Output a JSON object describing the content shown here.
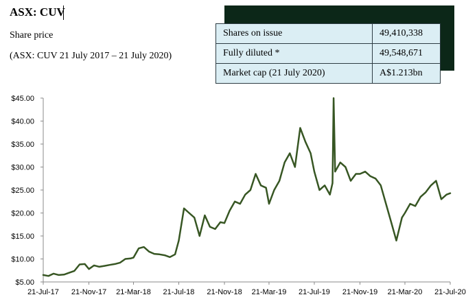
{
  "header": {
    "ticker": "ASX: CUV",
    "subtitle": "Share price",
    "range": "(ASX: CUV 21 July 2017 – 21 July 2020)"
  },
  "stats": [
    {
      "label": "Shares on issue",
      "value": "49,410,338"
    },
    {
      "label": "Fully diluted *",
      "value": "49,548,671"
    },
    {
      "label": "Market cap (21 July 2020)",
      "value": "A$1.213bn"
    }
  ],
  "colors": {
    "line": "#375623",
    "panel": "#0c2718",
    "table_bg": "#dbeef4"
  },
  "chart_data": {
    "type": "line",
    "xlabel": "",
    "ylabel": "",
    "ylim": [
      5,
      45
    ],
    "xlim": [
      "2017-07-21",
      "2020-07-21"
    ],
    "y_ticks": [
      5,
      10,
      15,
      20,
      25,
      30,
      35,
      40,
      45
    ],
    "y_tick_labels": [
      "$5.00",
      "$10.00",
      "$15.00",
      "$20.00",
      "$25.00",
      "$30.00",
      "$35.00",
      "$40.00",
      "$45.00"
    ],
    "x_ticks": [
      "2017-07-21",
      "2017-11-21",
      "2018-03-21",
      "2018-07-21",
      "2018-11-21",
      "2019-03-21",
      "2019-07-21",
      "2019-11-21",
      "2020-03-21",
      "2020-07-21"
    ],
    "x_tick_labels": [
      "21-Jul-17",
      "21-Nov-17",
      "21-Mar-18",
      "21-Jul-18",
      "21-Nov-18",
      "21-Mar-19",
      "21-Jul-19",
      "21-Nov-19",
      "21-Mar-20",
      "21-Jul-20"
    ],
    "grid": false,
    "series": [
      {
        "x": [
          "2017-07-21",
          "2017-08-04",
          "2017-08-18",
          "2017-09-01",
          "2017-09-15",
          "2017-09-29",
          "2017-10-13",
          "2017-10-27",
          "2017-11-10",
          "2017-11-21",
          "2017-12-05",
          "2017-12-19",
          "2018-01-02",
          "2018-01-16",
          "2018-01-30",
          "2018-02-13",
          "2018-02-27",
          "2018-03-13",
          "2018-03-21",
          "2018-04-04",
          "2018-04-18",
          "2018-05-02",
          "2018-05-16",
          "2018-05-30",
          "2018-06-13",
          "2018-06-27",
          "2018-07-11",
          "2018-07-21",
          "2018-08-04",
          "2018-08-18",
          "2018-09-01",
          "2018-09-15",
          "2018-09-29",
          "2018-10-13",
          "2018-10-27",
          "2018-11-10",
          "2018-11-21",
          "2018-12-05",
          "2018-12-19",
          "2019-01-02",
          "2019-01-16",
          "2019-01-30",
          "2019-02-13",
          "2019-02-27",
          "2019-03-13",
          "2019-03-21",
          "2019-04-04",
          "2019-04-18",
          "2019-05-02",
          "2019-05-16",
          "2019-05-30",
          "2019-06-13",
          "2019-06-27",
          "2019-07-11",
          "2019-07-21",
          "2019-08-04",
          "2019-08-18",
          "2019-09-01",
          "2019-09-08",
          "2019-09-11",
          "2019-09-15",
          "2019-09-29",
          "2019-10-13",
          "2019-10-27",
          "2019-11-10",
          "2019-11-21",
          "2019-12-05",
          "2019-12-19",
          "2020-01-02",
          "2020-01-16",
          "2020-01-30",
          "2020-02-13",
          "2020-02-27",
          "2020-03-13",
          "2020-03-21",
          "2020-04-04",
          "2020-04-18",
          "2020-05-02",
          "2020-05-16",
          "2020-05-30",
          "2020-06-13",
          "2020-06-27",
          "2020-07-11",
          "2020-07-21"
        ],
        "y": [
          6.5,
          6.3,
          6.8,
          6.5,
          6.6,
          7.0,
          7.4,
          8.8,
          8.9,
          7.8,
          8.6,
          8.3,
          8.5,
          8.7,
          8.9,
          9.2,
          10.0,
          10.1,
          10.3,
          12.3,
          12.6,
          11.6,
          11.1,
          11.0,
          10.8,
          10.4,
          11.0,
          14.0,
          21.0,
          20.0,
          19.0,
          15.0,
          19.5,
          17.0,
          16.5,
          18.0,
          17.8,
          20.5,
          22.5,
          22.0,
          24.0,
          25.0,
          28.5,
          26.0,
          25.5,
          22.0,
          25.0,
          27.0,
          31.0,
          33.0,
          30.0,
          38.5,
          35.5,
          33.0,
          29.0,
          25.0,
          26.0,
          24.0,
          26.5,
          45.0,
          29.0,
          31.0,
          30.0,
          27.0,
          28.5,
          28.5,
          29.0,
          28.0,
          27.5,
          26.0,
          22.0,
          18.0,
          14.0,
          19.0,
          20.0,
          22.0,
          21.5,
          23.5,
          24.5,
          26.0,
          27.0,
          23.0,
          24.0,
          24.3
        ]
      }
    ]
  }
}
